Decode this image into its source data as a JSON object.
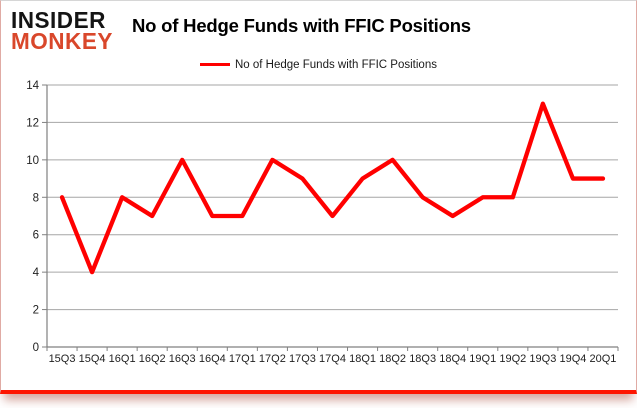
{
  "logo": {
    "line1": "INSIDER",
    "line2": "MONKEY"
  },
  "header": {
    "title": "No of Hedge Funds with FFIC Positions"
  },
  "legend": {
    "label": "No of Hedge Funds with FFIC Positions"
  },
  "colors": {
    "line": "#ff0000",
    "logo_black": "#141414",
    "logo_red": "#d9472b",
    "gridline": "#a6a6a6",
    "axis": "#808080",
    "tick_label": "#1f1f1f",
    "border_red": "#fe1500"
  },
  "chart_data": {
    "type": "line",
    "title": "No of Hedge Funds with FFIC Positions",
    "categories": [
      "15Q3",
      "15Q4",
      "16Q1",
      "16Q2",
      "16Q3",
      "16Q4",
      "17Q1",
      "17Q2",
      "17Q3",
      "17Q4",
      "18Q1",
      "18Q2",
      "18Q3",
      "18Q4",
      "19Q1",
      "19Q2",
      "19Q3",
      "19Q4",
      "20Q1"
    ],
    "series": [
      {
        "name": "No of Hedge Funds with FFIC Positions",
        "color": "#ff0000",
        "values": [
          8,
          4,
          8,
          7,
          10,
          7,
          7,
          10,
          9,
          7,
          9,
          10,
          8,
          7,
          8,
          8,
          13,
          9,
          9
        ]
      }
    ],
    "xlabel": "",
    "ylabel": "",
    "ylim": [
      0,
      14
    ],
    "ytick_step": 2,
    "grid": true,
    "legend_position": "top-center"
  }
}
